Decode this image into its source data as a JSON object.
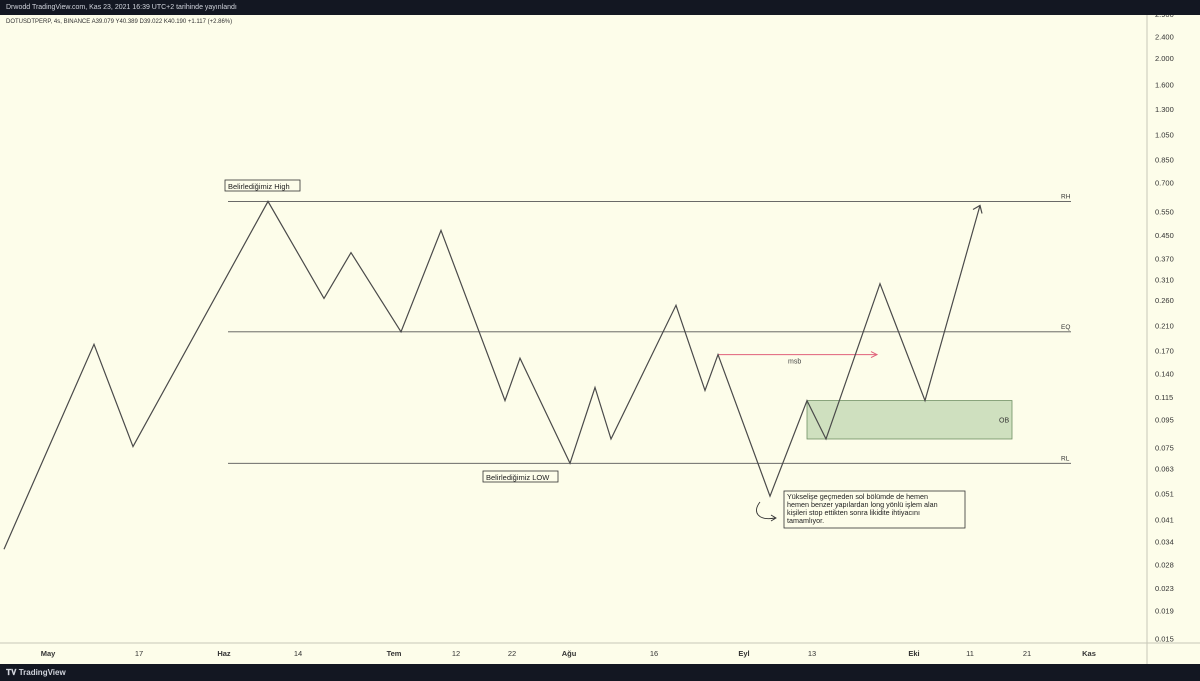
{
  "header": {
    "publish_info": "Drwodd TradingView.com, Kas 23, 2021 16:39 UTC+2 tarihinde yayınlandı"
  },
  "legend": {
    "symbol_line": "DOTUSDTPERP, 4s, BINANCE  A39.079  Y40.389  D39.022  K40.190  +1.117 (+2.86%)"
  },
  "footer": {
    "logo_text": "TradingView"
  },
  "annotations": {
    "high_label": "Belirlediğimiz  High",
    "low_label": "Belirlediğimiz LOW",
    "rh": "RH",
    "eq": "EQ",
    "rl": "RL",
    "msb": "msb",
    "ob": "OB",
    "note_lines": [
      "Yükselişe geçmeden sol bölümde de hemen",
      "hemen benzer yapılardan long yönlü işlem alan",
      "kişileri stop ettikten sonra likidite ihtiyacını",
      "tamamlıyor."
    ]
  },
  "colors": {
    "background": "#fdfdea",
    "frame": "#1e222d",
    "price_line": "#4a4a4a",
    "level_line": "#555555",
    "msb_arrow": "#e0607a",
    "ob_fill": "#cfe0bf",
    "ob_border": "#6f8f63"
  },
  "chart_data": {
    "type": "line",
    "title": "",
    "xlabel": "",
    "ylabel": "",
    "y_scale": "log",
    "y_ticks": [
      "2.900",
      "2.400",
      "2.000",
      "1.600",
      "1.300",
      "1.050",
      "0.850",
      "0.700",
      "0.550",
      "0.450",
      "0.370",
      "0.310",
      "0.260",
      "0.210",
      "0.170",
      "0.140",
      "0.115",
      "0.095",
      "0.075",
      "0.063",
      "0.051",
      "0.041",
      "0.034",
      "0.028",
      "0.023",
      "0.019",
      "0.015"
    ],
    "x_ticks": [
      "May",
      "17",
      "Haz",
      "14",
      "Tem",
      "12",
      "22",
      "Ağu",
      "16",
      "Eyl",
      "13",
      "Eki",
      "11",
      "21",
      "Kas"
    ],
    "levels": [
      {
        "name": "RH",
        "value": 0.6
      },
      {
        "name": "EQ",
        "value": 0.2
      },
      {
        "name": "RL",
        "value": 0.066
      }
    ],
    "series": [
      {
        "values": [
          0.032,
          0.18,
          0.076,
          0.6,
          0.265,
          0.39,
          0.2,
          0.47,
          0.112,
          0.16,
          0.066,
          0.125,
          0.081,
          0.25,
          0.122,
          0.165,
          0.05,
          0.112,
          0.081,
          0.3,
          0.112,
          0.58
        ]
      }
    ],
    "ob_zone": {
      "low": 0.081,
      "high": 0.112
    }
  }
}
